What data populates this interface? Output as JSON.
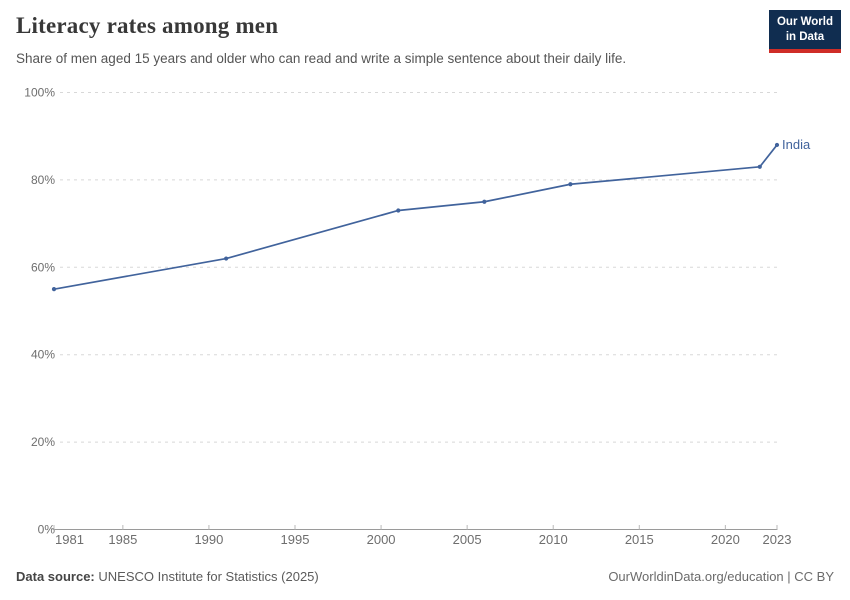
{
  "header": {
    "title": "Literacy rates among men",
    "subtitle": "Share of men aged 15 years and older who can read and write a simple sentence about their daily life.",
    "logo": {
      "line1": "Our World",
      "line2": "in Data"
    }
  },
  "chart_data": {
    "type": "line",
    "title": "Literacy rates among men",
    "xlabel": "",
    "ylabel": "",
    "xlim": [
      1981,
      2023
    ],
    "ylim": [
      0,
      100
    ],
    "grid": "horizontal-dashed",
    "x": [
      1981,
      1991,
      2001,
      2006,
      2011,
      2022,
      2023
    ],
    "series": [
      {
        "name": "India",
        "color": "#41639c",
        "values": [
          55,
          62,
          73,
          75,
          79,
          83,
          88
        ]
      }
    ],
    "xticks": [
      1981,
      1985,
      1990,
      1995,
      2000,
      2005,
      2010,
      2015,
      2020,
      2023
    ],
    "yticks": [
      0,
      20,
      40,
      60,
      80,
      100
    ],
    "ytick_suffix": "%",
    "legend": "end-of-line-label"
  },
  "footer": {
    "source_label": "Data source:",
    "source_text": "UNESCO Institute for Statistics (2025)",
    "credit": "OurWorldinData.org/education | CC BY"
  },
  "colors": {
    "line": "#41639c",
    "logo_bg": "#102d50",
    "logo_accent": "#cf2d27",
    "grid": "#d8d8d8",
    "axis": "#9a9a9a",
    "tick": "#b9b9b9",
    "tick_label": "#6e6e6e"
  }
}
